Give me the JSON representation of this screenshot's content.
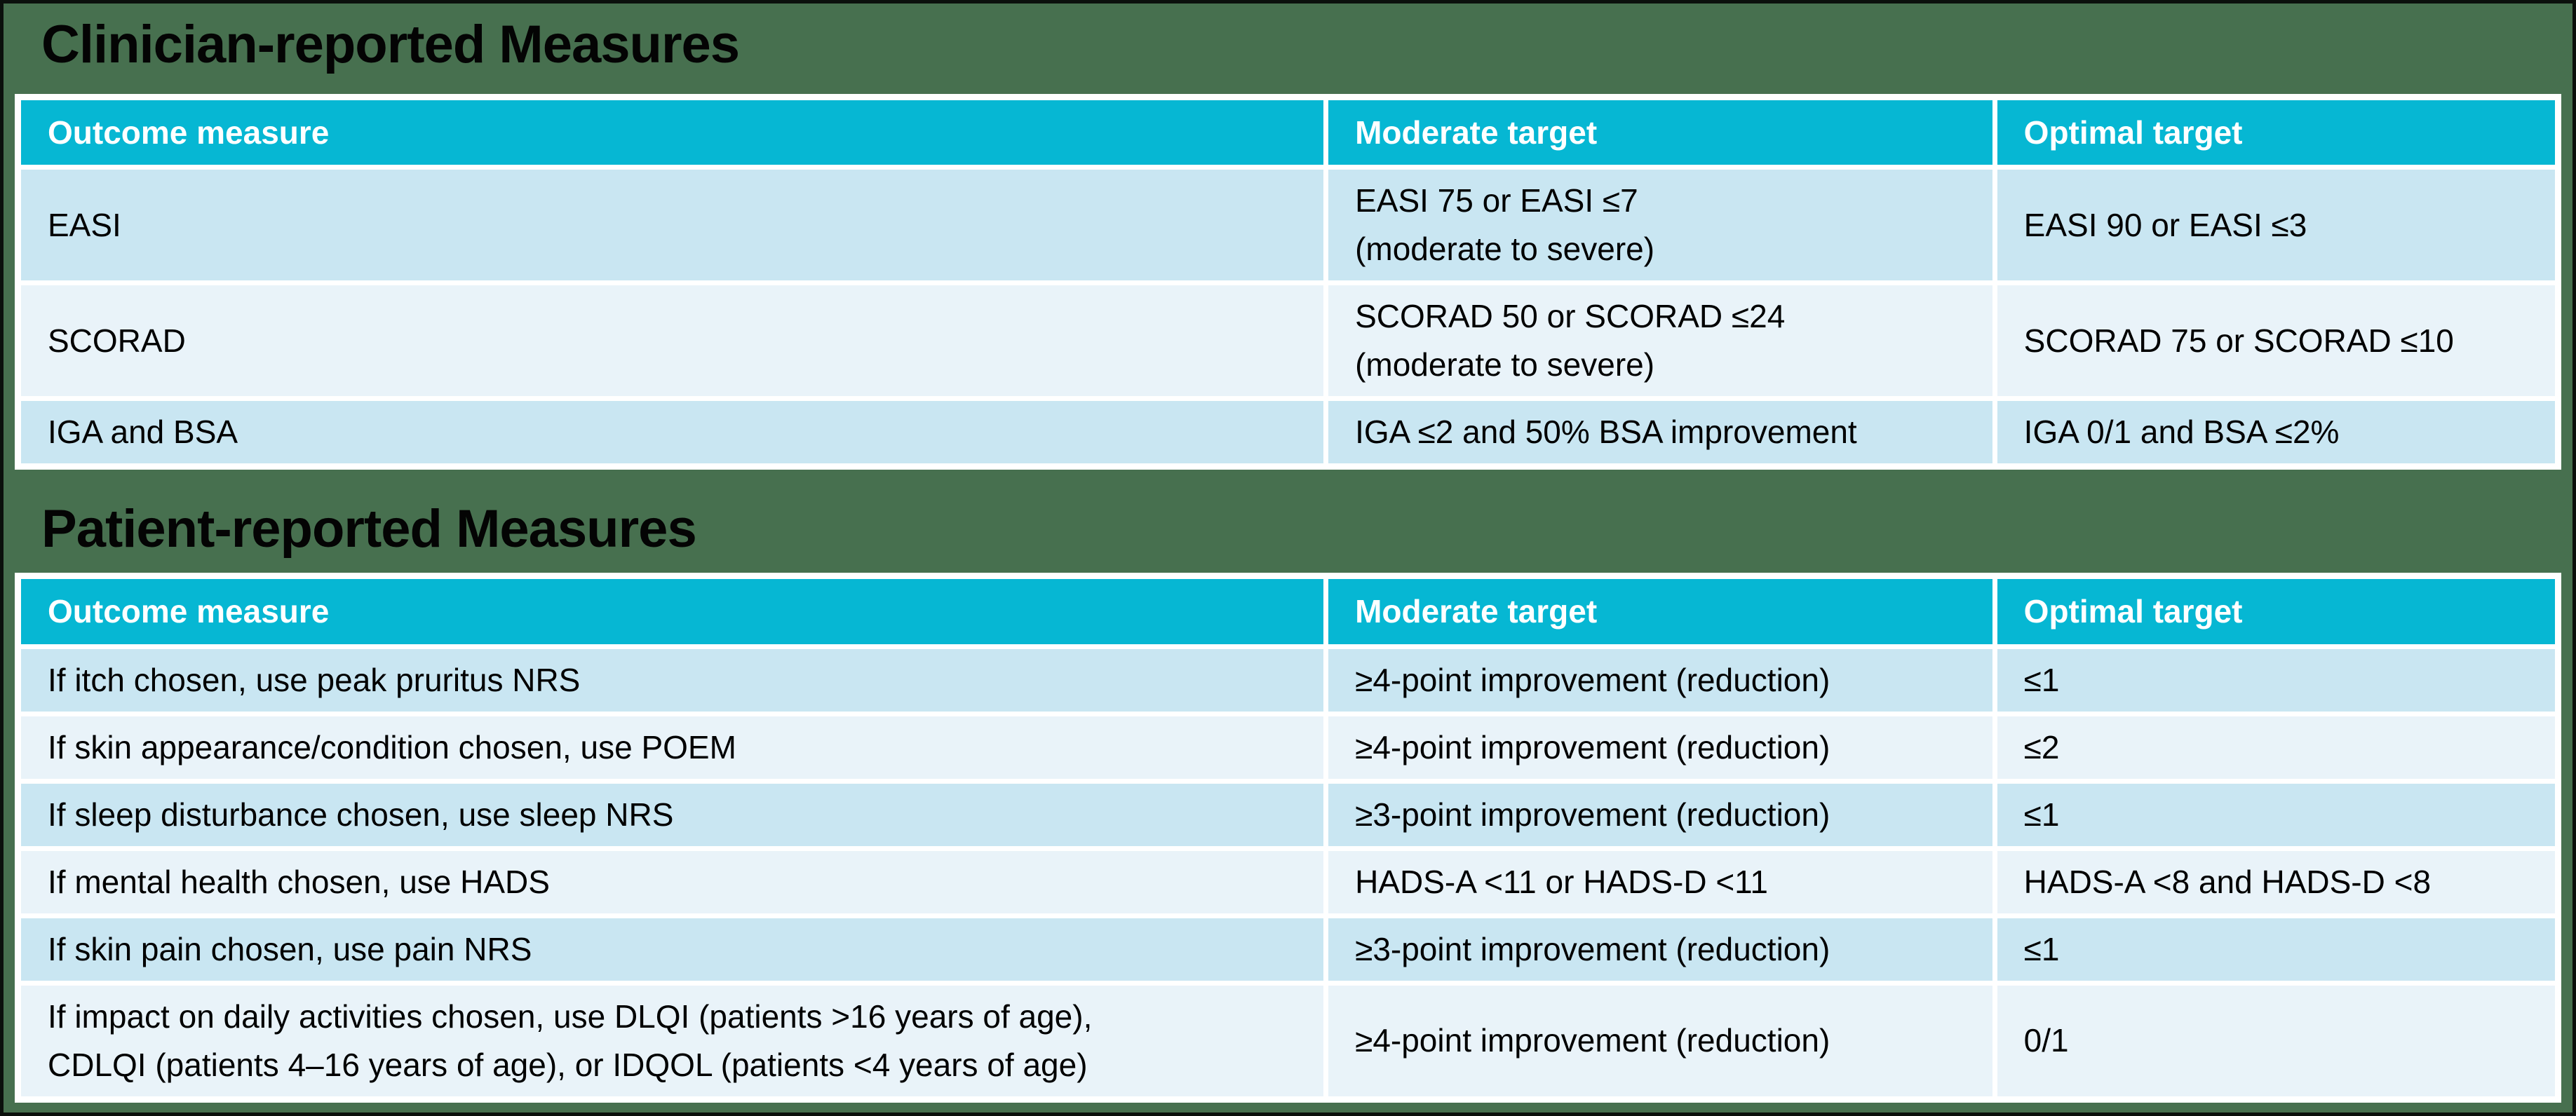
{
  "page": {
    "background_color": "#47704F",
    "header_bg_color": "#06B7D3",
    "header_text_color": "#ffffff",
    "row_dark_color": "#c9e6f2",
    "row_light_color": "#e9f3f9",
    "body_text_color": "#000000",
    "title_text_color": "#040404"
  },
  "sections": [
    {
      "title": "Clinician-reported Measures",
      "columns": [
        "Outcome measure",
        "Moderate target",
        "Optimal target"
      ],
      "rows": [
        [
          "EASI",
          "EASI 75 or EASI ≤7\n(moderate to severe)",
          "EASI 90 or EASI ≤3"
        ],
        [
          "SCORAD",
          "SCORAD 50 or SCORAD ≤24\n(moderate to severe)",
          "SCORAD 75 or SCORAD ≤10"
        ],
        [
          "IGA and BSA",
          "IGA ≤2 and 50% BSA improvement",
          "IGA 0/1 and BSA ≤2%"
        ]
      ]
    },
    {
      "title": "Patient-reported Measures",
      "columns": [
        "Outcome measure",
        "Moderate target",
        "Optimal target"
      ],
      "rows": [
        [
          "If itch chosen, use peak pruritus NRS",
          "≥4-point improvement (reduction)",
          "≤1"
        ],
        [
          "If skin appearance/condition chosen, use POEM",
          "≥4-point improvement (reduction)",
          "≤2"
        ],
        [
          "If sleep disturbance chosen, use sleep NRS",
          "≥3-point improvement (reduction)",
          "≤1"
        ],
        [
          "If mental health chosen, use HADS",
          "HADS-A <11 or HADS-D <11",
          "HADS-A <8 and HADS-D <8"
        ],
        [
          "If skin pain chosen, use pain NRS",
          "≥3-point improvement (reduction)",
          "≤1"
        ],
        [
          "If impact on daily activities chosen, use DLQI (patients >16 years of age),\nCDLQI (patients 4–16 years of age), or IDQOL (patients <4 years of age)",
          "≥4-point improvement (reduction)",
          "0/1"
        ]
      ]
    }
  ]
}
